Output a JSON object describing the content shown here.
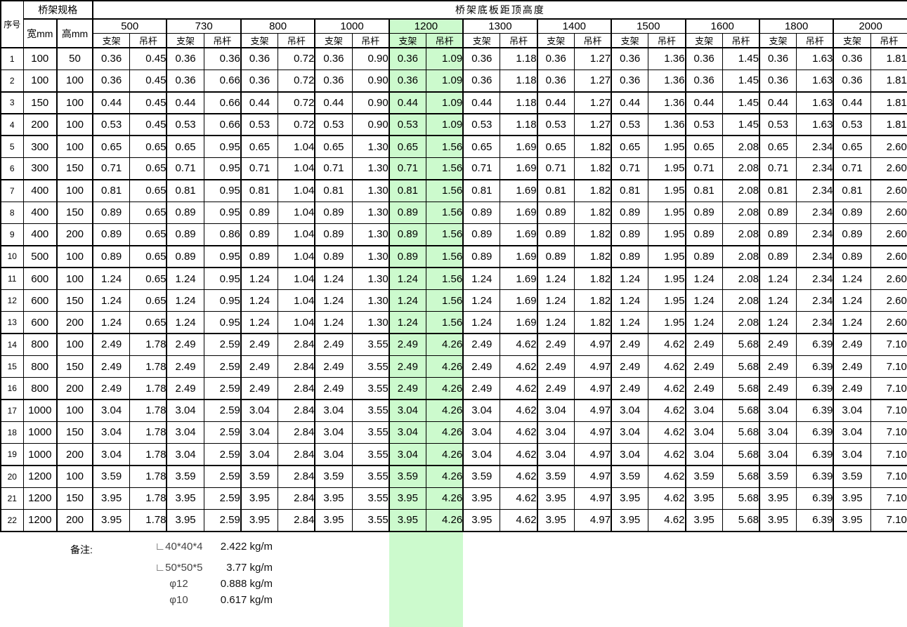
{
  "colors": {
    "highlight": "#ccfacd",
    "border": "#000000",
    "background": "#ffffff"
  },
  "header": {
    "seq_label": "序号",
    "spec_label": "桥架规格",
    "width_label": "宽mm",
    "height_label": "高mm",
    "main_label": "桥架底板距顶高度",
    "heights": [
      "500",
      "730",
      "800",
      "1000",
      "1200",
      "1300",
      "1400",
      "1500",
      "1600",
      "1800",
      "2000"
    ],
    "sub_support": "支架",
    "sub_rod": "吊杆",
    "highlight_height": "1200"
  },
  "rows": [
    {
      "no": "1",
      "width": "100",
      "height": "50",
      "values": [
        "0.36",
        "0.45",
        "0.36",
        "0.36",
        "0.36",
        "0.72",
        "0.36",
        "0.90",
        "0.36",
        "1.09",
        "0.36",
        "1.18",
        "0.36",
        "1.27",
        "0.36",
        "1.36",
        "0.36",
        "1.45",
        "0.36",
        "1.63",
        "0.36",
        "1.81"
      ]
    },
    {
      "no": "2",
      "width": "100",
      "height": "100",
      "values": [
        "0.36",
        "0.45",
        "0.36",
        "0.66",
        "0.36",
        "0.72",
        "0.36",
        "0.90",
        "0.36",
        "1.09",
        "0.36",
        "1.18",
        "0.36",
        "1.27",
        "0.36",
        "1.36",
        "0.36",
        "1.45",
        "0.36",
        "1.63",
        "0.36",
        "1.81"
      ]
    },
    {
      "no": "3",
      "width": "150",
      "height": "100",
      "values": [
        "0.44",
        "0.45",
        "0.44",
        "0.66",
        "0.44",
        "0.72",
        "0.44",
        "0.90",
        "0.44",
        "1.09",
        "0.44",
        "1.18",
        "0.44",
        "1.27",
        "0.44",
        "1.36",
        "0.44",
        "1.45",
        "0.44",
        "1.63",
        "0.44",
        "1.81"
      ]
    },
    {
      "no": "4",
      "width": "200",
      "height": "100",
      "values": [
        "0.53",
        "0.45",
        "0.53",
        "0.66",
        "0.53",
        "0.72",
        "0.53",
        "0.90",
        "0.53",
        "1.09",
        "0.53",
        "1.18",
        "0.53",
        "1.27",
        "0.53",
        "1.36",
        "0.53",
        "1.45",
        "0.53",
        "1.63",
        "0.53",
        "1.81"
      ]
    },
    {
      "no": "5",
      "width": "300",
      "height": "100",
      "values": [
        "0.65",
        "0.65",
        "0.65",
        "0.95",
        "0.65",
        "1.04",
        "0.65",
        "1.30",
        "0.65",
        "1.56",
        "0.65",
        "1.69",
        "0.65",
        "1.82",
        "0.65",
        "1.95",
        "0.65",
        "2.08",
        "0.65",
        "2.34",
        "0.65",
        "2.60"
      ]
    },
    {
      "no": "6",
      "width": "300",
      "height": "150",
      "values": [
        "0.71",
        "0.65",
        "0.71",
        "0.95",
        "0.71",
        "1.04",
        "0.71",
        "1.30",
        "0.71",
        "1.56",
        "0.71",
        "1.69",
        "0.71",
        "1.82",
        "0.71",
        "1.95",
        "0.71",
        "2.08",
        "0.71",
        "2.34",
        "0.71",
        "2.60"
      ]
    },
    {
      "no": "7",
      "width": "400",
      "height": "100",
      "values": [
        "0.81",
        "0.65",
        "0.81",
        "0.95",
        "0.81",
        "1.04",
        "0.81",
        "1.30",
        "0.81",
        "1.56",
        "0.81",
        "1.69",
        "0.81",
        "1.82",
        "0.81",
        "1.95",
        "0.81",
        "2.08",
        "0.81",
        "2.34",
        "0.81",
        "2.60"
      ]
    },
    {
      "no": "8",
      "width": "400",
      "height": "150",
      "values": [
        "0.89",
        "0.65",
        "0.89",
        "0.95",
        "0.89",
        "1.04",
        "0.89",
        "1.30",
        "0.89",
        "1.56",
        "0.89",
        "1.69",
        "0.89",
        "1.82",
        "0.89",
        "1.95",
        "0.89",
        "2.08",
        "0.89",
        "2.34",
        "0.89",
        "2.60"
      ]
    },
    {
      "no": "9",
      "width": "400",
      "height": "200",
      "values": [
        "0.89",
        "0.65",
        "0.89",
        "0.86",
        "0.89",
        "1.04",
        "0.89",
        "1.30",
        "0.89",
        "1.56",
        "0.89",
        "1.69",
        "0.89",
        "1.82",
        "0.89",
        "1.95",
        "0.89",
        "2.08",
        "0.89",
        "2.34",
        "0.89",
        "2.60"
      ]
    },
    {
      "no": "10",
      "width": "500",
      "height": "100",
      "values": [
        "0.89",
        "0.65",
        "0.89",
        "0.95",
        "0.89",
        "1.04",
        "0.89",
        "1.30",
        "0.89",
        "1.56",
        "0.89",
        "1.69",
        "0.89",
        "1.82",
        "0.89",
        "1.95",
        "0.89",
        "2.08",
        "0.89",
        "2.34",
        "0.89",
        "2.60"
      ]
    },
    {
      "no": "11",
      "width": "600",
      "height": "100",
      "values": [
        "1.24",
        "0.65",
        "1.24",
        "0.95",
        "1.24",
        "1.04",
        "1.24",
        "1.30",
        "1.24",
        "1.56",
        "1.24",
        "1.69",
        "1.24",
        "1.82",
        "1.24",
        "1.95",
        "1.24",
        "2.08",
        "1.24",
        "2.34",
        "1.24",
        "2.60"
      ]
    },
    {
      "no": "12",
      "width": "600",
      "height": "150",
      "values": [
        "1.24",
        "0.65",
        "1.24",
        "0.95",
        "1.24",
        "1.04",
        "1.24",
        "1.30",
        "1.24",
        "1.56",
        "1.24",
        "1.69",
        "1.24",
        "1.82",
        "1.24",
        "1.95",
        "1.24",
        "2.08",
        "1.24",
        "2.34",
        "1.24",
        "2.60"
      ]
    },
    {
      "no": "13",
      "width": "600",
      "height": "200",
      "values": [
        "1.24",
        "0.65",
        "1.24",
        "0.95",
        "1.24",
        "1.04",
        "1.24",
        "1.30",
        "1.24",
        "1.56",
        "1.24",
        "1.69",
        "1.24",
        "1.82",
        "1.24",
        "1.95",
        "1.24",
        "2.08",
        "1.24",
        "2.34",
        "1.24",
        "2.60"
      ]
    },
    {
      "no": "14",
      "width": "800",
      "height": "100",
      "values": [
        "2.49",
        "1.78",
        "2.49",
        "2.59",
        "2.49",
        "2.84",
        "2.49",
        "3.55",
        "2.49",
        "4.26",
        "2.49",
        "4.62",
        "2.49",
        "4.97",
        "2.49",
        "4.62",
        "2.49",
        "5.68",
        "2.49",
        "6.39",
        "2.49",
        "7.10"
      ]
    },
    {
      "no": "15",
      "width": "800",
      "height": "150",
      "values": [
        "2.49",
        "1.78",
        "2.49",
        "2.59",
        "2.49",
        "2.84",
        "2.49",
        "3.55",
        "2.49",
        "4.26",
        "2.49",
        "4.62",
        "2.49",
        "4.97",
        "2.49",
        "4.62",
        "2.49",
        "5.68",
        "2.49",
        "6.39",
        "2.49",
        "7.10"
      ]
    },
    {
      "no": "16",
      "width": "800",
      "height": "200",
      "values": [
        "2.49",
        "1.78",
        "2.49",
        "2.59",
        "2.49",
        "2.84",
        "2.49",
        "3.55",
        "2.49",
        "4.26",
        "2.49",
        "4.62",
        "2.49",
        "4.97",
        "2.49",
        "4.62",
        "2.49",
        "5.68",
        "2.49",
        "6.39",
        "2.49",
        "7.10"
      ]
    },
    {
      "no": "17",
      "width": "1000",
      "height": "100",
      "values": [
        "3.04",
        "1.78",
        "3.04",
        "2.59",
        "3.04",
        "2.84",
        "3.04",
        "3.55",
        "3.04",
        "4.26",
        "3.04",
        "4.62",
        "3.04",
        "4.97",
        "3.04",
        "4.62",
        "3.04",
        "5.68",
        "3.04",
        "6.39",
        "3.04",
        "7.10"
      ]
    },
    {
      "no": "18",
      "width": "1000",
      "height": "150",
      "values": [
        "3.04",
        "1.78",
        "3.04",
        "2.59",
        "3.04",
        "2.84",
        "3.04",
        "3.55",
        "3.04",
        "4.26",
        "3.04",
        "4.62",
        "3.04",
        "4.97",
        "3.04",
        "4.62",
        "3.04",
        "5.68",
        "3.04",
        "6.39",
        "3.04",
        "7.10"
      ]
    },
    {
      "no": "19",
      "width": "1000",
      "height": "200",
      "values": [
        "3.04",
        "1.78",
        "3.04",
        "2.59",
        "3.04",
        "2.84",
        "3.04",
        "3.55",
        "3.04",
        "4.26",
        "3.04",
        "4.62",
        "3.04",
        "4.97",
        "3.04",
        "4.62",
        "3.04",
        "5.68",
        "3.04",
        "6.39",
        "3.04",
        "7.10"
      ]
    },
    {
      "no": "20",
      "width": "1200",
      "height": "100",
      "values": [
        "3.59",
        "1.78",
        "3.59",
        "2.59",
        "3.59",
        "2.84",
        "3.59",
        "3.55",
        "3.59",
        "4.26",
        "3.59",
        "4.62",
        "3.59",
        "4.97",
        "3.59",
        "4.62",
        "3.59",
        "5.68",
        "3.59",
        "6.39",
        "3.59",
        "7.10"
      ]
    },
    {
      "no": "21",
      "width": "1200",
      "height": "150",
      "values": [
        "3.95",
        "1.78",
        "3.95",
        "2.59",
        "3.95",
        "2.84",
        "3.95",
        "3.55",
        "3.95",
        "4.26",
        "3.95",
        "4.62",
        "3.95",
        "4.97",
        "3.95",
        "4.62",
        "3.95",
        "5.68",
        "3.95",
        "6.39",
        "3.95",
        "7.10"
      ]
    },
    {
      "no": "22",
      "width": "1200",
      "height": "200",
      "values": [
        "3.95",
        "1.78",
        "3.95",
        "2.59",
        "3.95",
        "2.84",
        "3.95",
        "3.55",
        "3.95",
        "4.26",
        "3.95",
        "4.62",
        "3.95",
        "4.97",
        "3.95",
        "4.62",
        "3.95",
        "5.68",
        "3.95",
        "6.39",
        "3.95",
        "7.10"
      ]
    }
  ],
  "notes": {
    "label": "备注:",
    "items": [
      {
        "symbol": "∟40*40*4",
        "weight": "2.422 kg/m"
      },
      {
        "symbol": "∟50*50*5",
        "weight": "3.77 kg/m"
      },
      {
        "symbol": "φ12",
        "weight": "0.888 kg/m"
      },
      {
        "symbol": "φ10",
        "weight": "0.617 kg/m"
      }
    ]
  }
}
